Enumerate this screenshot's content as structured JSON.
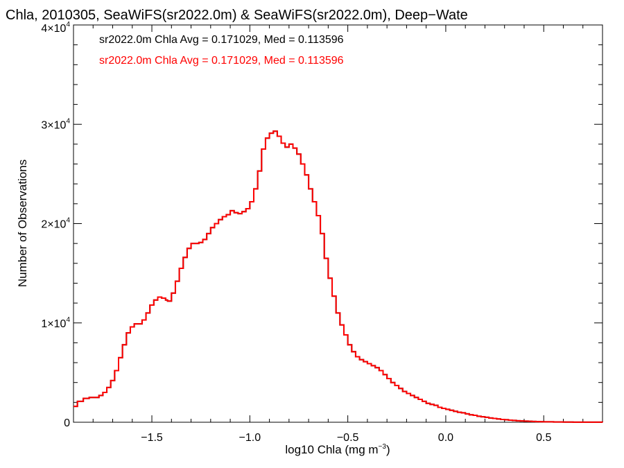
{
  "chart_data": {
    "type": "line",
    "title": "Chla, 2010305, SeaWiFS(sr2022.0m) & SeaWiFS(sr2022.0m), Deep−Wate",
    "xlabel": {
      "base": "log10 Chla (mg m",
      "sup": "−3",
      "tail": ")"
    },
    "ylabel": "Number of Observations",
    "xlim": [
      -1.9,
      0.8
    ],
    "ylim": [
      0,
      40000
    ],
    "x_ticks": [
      {
        "value": -1.5,
        "label": "−1.5"
      },
      {
        "value": -1.0,
        "label": "−1.0"
      },
      {
        "value": -0.5,
        "label": "−0.5"
      },
      {
        "value": 0.0,
        "label": "0.0"
      },
      {
        "value": 0.5,
        "label": "0.5"
      }
    ],
    "y_ticks": [
      {
        "value": 0,
        "base": "0",
        "sup": ""
      },
      {
        "value": 10000,
        "base": "1×10",
        "sup": "4"
      },
      {
        "value": 20000,
        "base": "2×10",
        "sup": "4"
      },
      {
        "value": 30000,
        "base": "3×10",
        "sup": "4"
      },
      {
        "value": 40000,
        "base": "4×10",
        "sup": "4"
      }
    ],
    "annotations": [
      {
        "text": "sr2022.0m Chla Avg = 0.171029, Med = 0.113596",
        "color": "#000000"
      },
      {
        "text": "sr2022.0m Chla Avg = 0.171029, Med = 0.113596",
        "color": "#ff0000"
      }
    ],
    "series": [
      {
        "color": "#ff0000",
        "style": "step",
        "points": [
          [
            -1.9,
            1600
          ],
          [
            -1.88,
            2100
          ],
          [
            -1.85,
            2400
          ],
          [
            -1.82,
            2500
          ],
          [
            -1.8,
            2500
          ],
          [
            -1.77,
            2700
          ],
          [
            -1.75,
            3000
          ],
          [
            -1.73,
            3500
          ],
          [
            -1.71,
            4200
          ],
          [
            -1.69,
            5200
          ],
          [
            -1.67,
            6500
          ],
          [
            -1.65,
            7800
          ],
          [
            -1.63,
            9000
          ],
          [
            -1.61,
            9600
          ],
          [
            -1.59,
            9900
          ],
          [
            -1.57,
            9900
          ],
          [
            -1.55,
            10300
          ],
          [
            -1.53,
            11000
          ],
          [
            -1.51,
            11800
          ],
          [
            -1.49,
            12300
          ],
          [
            -1.47,
            12600
          ],
          [
            -1.45,
            12500
          ],
          [
            -1.43,
            12300
          ],
          [
            -1.42,
            12200
          ],
          [
            -1.4,
            13000
          ],
          [
            -1.38,
            14200
          ],
          [
            -1.36,
            15500
          ],
          [
            -1.34,
            16600
          ],
          [
            -1.32,
            17500
          ],
          [
            -1.3,
            18000
          ],
          [
            -1.28,
            18000
          ],
          [
            -1.26,
            18100
          ],
          [
            -1.24,
            18400
          ],
          [
            -1.22,
            19000
          ],
          [
            -1.2,
            19600
          ],
          [
            -1.18,
            20000
          ],
          [
            -1.16,
            20400
          ],
          [
            -1.14,
            20700
          ],
          [
            -1.12,
            20900
          ],
          [
            -1.1,
            21300
          ],
          [
            -1.08,
            21100
          ],
          [
            -1.06,
            21000
          ],
          [
            -1.04,
            21200
          ],
          [
            -1.02,
            21500
          ],
          [
            -1.0,
            22200
          ],
          [
            -0.98,
            23500
          ],
          [
            -0.96,
            25300
          ],
          [
            -0.94,
            27500
          ],
          [
            -0.92,
            28600
          ],
          [
            -0.9,
            29100
          ],
          [
            -0.88,
            29300
          ],
          [
            -0.86,
            28800
          ],
          [
            -0.84,
            28100
          ],
          [
            -0.82,
            27700
          ],
          [
            -0.8,
            28000
          ],
          [
            -0.78,
            27600
          ],
          [
            -0.76,
            27000
          ],
          [
            -0.74,
            26000
          ],
          [
            -0.72,
            24900
          ],
          [
            -0.7,
            23500
          ],
          [
            -0.68,
            22200
          ],
          [
            -0.66,
            20800
          ],
          [
            -0.64,
            19000
          ],
          [
            -0.62,
            16500
          ],
          [
            -0.6,
            14500
          ],
          [
            -0.58,
            12700
          ],
          [
            -0.56,
            11000
          ],
          [
            -0.54,
            9800
          ],
          [
            -0.52,
            8800
          ],
          [
            -0.5,
            7800
          ],
          [
            -0.48,
            7100
          ],
          [
            -0.46,
            6600
          ],
          [
            -0.44,
            6300
          ],
          [
            -0.42,
            6100
          ],
          [
            -0.4,
            5900
          ],
          [
            -0.38,
            5700
          ],
          [
            -0.36,
            5500
          ],
          [
            -0.34,
            5200
          ],
          [
            -0.32,
            4800
          ],
          [
            -0.3,
            4400
          ],
          [
            -0.28,
            4000
          ],
          [
            -0.26,
            3700
          ],
          [
            -0.24,
            3400
          ],
          [
            -0.22,
            3100
          ],
          [
            -0.2,
            2900
          ],
          [
            -0.18,
            2700
          ],
          [
            -0.16,
            2500
          ],
          [
            -0.14,
            2300
          ],
          [
            -0.12,
            2100
          ],
          [
            -0.1,
            1900
          ],
          [
            -0.08,
            1800
          ],
          [
            -0.06,
            1700
          ],
          [
            -0.04,
            1500
          ],
          [
            -0.02,
            1400
          ],
          [
            0.0,
            1300
          ],
          [
            0.02,
            1200
          ],
          [
            0.04,
            1100
          ],
          [
            0.06,
            1000
          ],
          [
            0.08,
            950
          ],
          [
            0.1,
            850
          ],
          [
            0.12,
            750
          ],
          [
            0.14,
            700
          ],
          [
            0.16,
            600
          ],
          [
            0.18,
            550
          ],
          [
            0.2,
            500
          ],
          [
            0.22,
            430
          ],
          [
            0.24,
            380
          ],
          [
            0.26,
            330
          ],
          [
            0.28,
            280
          ],
          [
            0.3,
            250
          ],
          [
            0.32,
            210
          ],
          [
            0.34,
            180
          ],
          [
            0.36,
            150
          ],
          [
            0.38,
            130
          ],
          [
            0.4,
            110
          ],
          [
            0.42,
            95
          ],
          [
            0.44,
            80
          ],
          [
            0.46,
            65
          ],
          [
            0.48,
            55
          ],
          [
            0.5,
            45
          ],
          [
            0.55,
            30
          ],
          [
            0.6,
            20
          ],
          [
            0.65,
            12
          ],
          [
            0.7,
            8
          ],
          [
            0.75,
            5
          ],
          [
            0.8,
            3
          ]
        ]
      },
      {
        "color": "#000000",
        "style": "step",
        "points": []
      }
    ],
    "grid": false,
    "legend": "none"
  }
}
